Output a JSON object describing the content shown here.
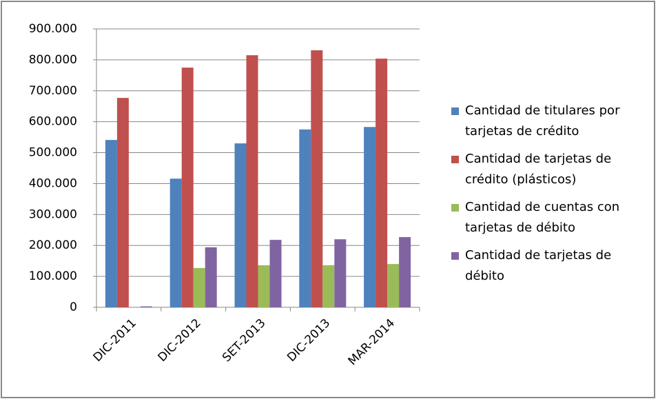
{
  "chart_data": {
    "type": "bar",
    "categories": [
      "DIC-2011",
      "DIC-2012",
      "SET-2013",
      "DIC-2013",
      "MAR-2014"
    ],
    "series": [
      {
        "name": "Cantidad de titulares por tarjetas de crédito",
        "color": "#4f81bd",
        "values": [
          541000,
          416000,
          530000,
          575000,
          583000
        ]
      },
      {
        "name": "Cantidad de tarjetas de crédito (plásticos)",
        "color": "#c0504d",
        "values": [
          677000,
          775000,
          815000,
          831000,
          804000
        ]
      },
      {
        "name": "Cantidad de cuentas con tarjetas de débito",
        "color": "#9bbb59",
        "values": [
          0,
          127000,
          136000,
          136000,
          140000
        ]
      },
      {
        "name": "Cantidad de tarjetas de débito",
        "color": "#8064a2",
        "values": [
          3000,
          194000,
          218000,
          220000,
          227000
        ]
      }
    ],
    "ylim": [
      0,
      900000
    ],
    "yticks": [
      0,
      {
        "value": 100000,
        "label": "100.000"
      },
      {
        "value": 200000,
        "label": "200.000"
      },
      {
        "value": 300000,
        "label": "300.000"
      },
      {
        "value": 400000,
        "label": "400.000"
      },
      {
        "value": 500000,
        "label": "500.000"
      },
      {
        "value": 600000,
        "label": "600.000"
      },
      {
        "value": 700000,
        "label": "700.000"
      },
      {
        "value": 800000,
        "label": "800.000"
      },
      {
        "value": 900000,
        "label": "900.000"
      }
    ],
    "grid": true,
    "legend": "right"
  }
}
